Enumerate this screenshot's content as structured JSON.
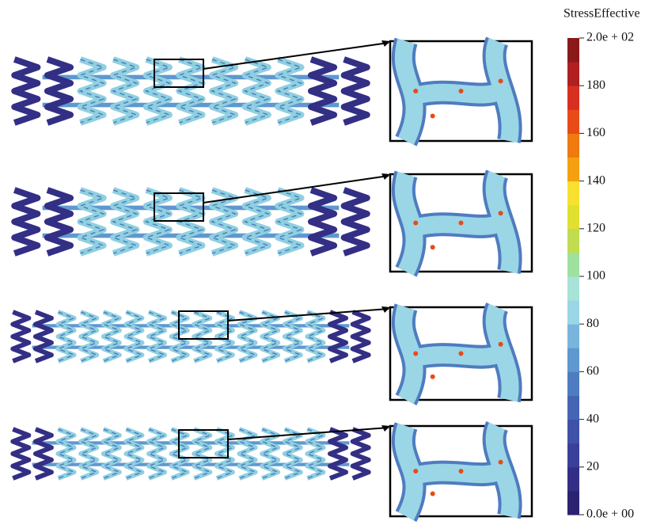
{
  "colorbar": {
    "title": "StressEffective",
    "clim": [
      0,
      200
    ],
    "ticks": [
      {
        "value": 0,
        "label": "0.0e + 00"
      },
      20,
      40,
      60,
      80,
      100,
      120,
      140,
      160,
      180,
      {
        "value": 200,
        "label": "2.0e + 02"
      }
    ],
    "colors": [
      "#2b2270",
      "#332f85",
      "#3a3f98",
      "#3f52a8",
      "#4565b4",
      "#4f7cc0",
      "#5f98cf",
      "#78b4dc",
      "#9ad6e6",
      "#a8e3d8",
      "#a0e0a0",
      "#c0dc50",
      "#e0e030",
      "#f8e030",
      "#f5a010",
      "#ee7a10",
      "#e84a18",
      "#d83020",
      "#b02020",
      "#8a1a1a"
    ]
  }
}
